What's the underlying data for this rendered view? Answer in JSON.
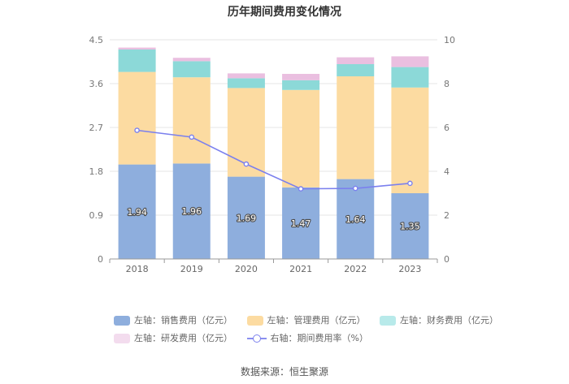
{
  "chart_data": {
    "type": "bar",
    "title": "历年期间费用变化情况",
    "categories": [
      "2018",
      "2019",
      "2020",
      "2021",
      "2022",
      "2023"
    ],
    "stacked": true,
    "series": [
      {
        "name": "左轴：销售费用（亿元）",
        "axis": "left",
        "type": "bar",
        "color": "#8eaedd",
        "values": [
          1.94,
          1.96,
          1.69,
          1.47,
          1.64,
          1.35
        ],
        "labels": [
          "1.94",
          "1.96",
          "1.69",
          "1.47",
          "1.64",
          "1.35"
        ]
      },
      {
        "name": "左轴：管理费用（亿元）",
        "axis": "left",
        "type": "bar",
        "color": "#fcdba1",
        "values": [
          1.9,
          1.77,
          1.82,
          2.0,
          2.11,
          2.17
        ]
      },
      {
        "name": "左轴：财务费用（亿元）",
        "axis": "left",
        "type": "bar",
        "color": "#8cd9d8",
        "values": [
          0.46,
          0.33,
          0.2,
          0.2,
          0.25,
          0.42
        ]
      },
      {
        "name": "左轴：研发费用（亿元）",
        "axis": "left",
        "type": "bar",
        "color": "#eabfe0",
        "values": [
          0.04,
          0.07,
          0.1,
          0.13,
          0.14,
          0.22
        ]
      },
      {
        "name": "右轴：期间费用率（%）",
        "axis": "right",
        "type": "line",
        "color": "#7b80ee",
        "values": [
          5.87,
          5.56,
          4.33,
          3.2,
          3.22,
          3.45
        ]
      }
    ],
    "y_left": {
      "min": 0,
      "max": 4.5,
      "ticks": [
        "0",
        "0.9",
        "1.8",
        "2.7",
        "3.6",
        "4.5"
      ]
    },
    "y_right": {
      "min": 0,
      "max": 10,
      "ticks": [
        "0",
        "2",
        "4",
        "6",
        "8",
        "10"
      ]
    },
    "grid": true,
    "legend_position": "bottom"
  },
  "source": "数据来源：恒生聚源"
}
